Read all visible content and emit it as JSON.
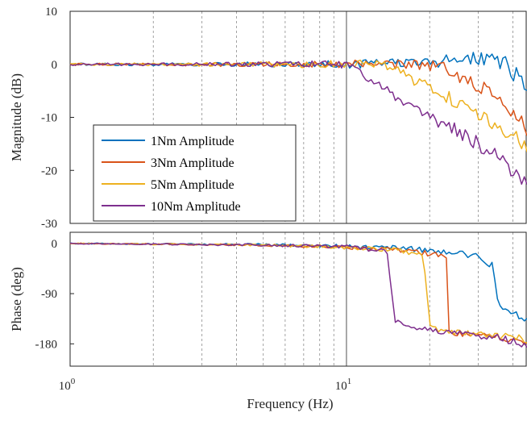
{
  "chart_data": [
    {
      "type": "line",
      "panel": "magnitude",
      "ylabel": "Magnitude (dB)",
      "xlabel": "",
      "xscale": "log",
      "xlim": [
        1,
        45
      ],
      "ylim": [
        -30,
        10
      ],
      "yticks": [
        10,
        0,
        -10,
        -20,
        -30
      ],
      "ytick_labels": [
        "10",
        "0",
        "-10",
        "-20",
        "-30"
      ],
      "grid": "x dashed",
      "legend": {
        "placement": "lower-left",
        "entries": [
          "1Nm Amplitude",
          "3Nm Amplitude",
          "5Nm Amplitude",
          "10Nm Amplitude"
        ]
      },
      "series": [
        {
          "name": "1Nm Amplitude",
          "color": "#0072BD",
          "x": [
            1,
            2,
            4,
            7,
            10,
            15,
            20,
            25,
            30,
            35,
            38,
            40,
            42,
            44,
            45
          ],
          "y": [
            0,
            0,
            0,
            0,
            0,
            0.2,
            0.5,
            0.8,
            1,
            1,
            0,
            -1.5,
            -2.5,
            -3.5,
            -3.5
          ]
        },
        {
          "name": "3Nm Amplitude",
          "color": "#D95319",
          "x": [
            1,
            3,
            6,
            10,
            14,
            17,
            19,
            22,
            25,
            30,
            35,
            40,
            45
          ],
          "y": [
            0,
            0,
            0,
            0,
            0,
            0,
            0,
            -0.5,
            -2,
            -4,
            -6.5,
            -9.5,
            -12
          ]
        },
        {
          "name": "5Nm Amplitude",
          "color": "#EDB120",
          "x": [
            1,
            3,
            6,
            10,
            13,
            15,
            17,
            20,
            25,
            30,
            35,
            40,
            45
          ],
          "y": [
            0,
            0,
            0,
            0,
            0,
            -1,
            -2.5,
            -4.5,
            -7,
            -9.5,
            -11.5,
            -13.5,
            -15
          ]
        },
        {
          "name": "10Nm Amplitude",
          "color": "#7E2F8E",
          "x": [
            1,
            3,
            6,
            9,
            10,
            12,
            15,
            17,
            20,
            25,
            30,
            35,
            40,
            45
          ],
          "y": [
            0,
            0,
            0,
            0,
            0,
            -2.5,
            -6,
            -8,
            -10,
            -12.5,
            -15,
            -17.5,
            -20,
            -22
          ]
        }
      ]
    },
    {
      "type": "line",
      "panel": "phase",
      "ylabel": "Phase (deg)",
      "xlabel": "Frequency (Hz)",
      "xscale": "log",
      "xlim": [
        1,
        45
      ],
      "ylim": [
        -220,
        20
      ],
      "yticks": [
        0,
        -90,
        -180
      ],
      "ytick_labels": [
        "0",
        "-90",
        "-180"
      ],
      "xticks": [
        1,
        10
      ],
      "xtick_labels": [
        {
          "base": "10",
          "exp": "0"
        },
        {
          "base": "10",
          "exp": "1"
        }
      ],
      "grid": "x dashed",
      "series": [
        {
          "name": "1Nm Amplitude",
          "color": "#0072BD",
          "x": [
            1,
            5,
            10,
            15,
            20,
            25,
            30,
            34,
            35,
            36,
            40,
            45
          ],
          "y": [
            0,
            -2,
            -5,
            -8,
            -12,
            -17,
            -25,
            -40,
            -90,
            -110,
            -125,
            -140
          ]
        },
        {
          "name": "3Nm Amplitude",
          "color": "#D95319",
          "x": [
            1,
            5,
            10,
            15,
            20,
            23,
            23.5,
            25,
            30,
            35,
            40,
            45
          ],
          "y": [
            0,
            -3,
            -7,
            -12,
            -18,
            -25,
            -160,
            -162,
            -165,
            -168,
            -172,
            -178
          ]
        },
        {
          "name": "5Nm Amplitude",
          "color": "#EDB120",
          "x": [
            1,
            5,
            10,
            15,
            19,
            20,
            22,
            25,
            30,
            35,
            40,
            45
          ],
          "y": [
            0,
            -3,
            -7,
            -12,
            -20,
            -150,
            -155,
            -160,
            -162,
            -165,
            -168,
            -172
          ]
        },
        {
          "name": "10Nm Amplitude",
          "color": "#7E2F8E",
          "x": [
            1,
            5,
            10,
            13,
            14,
            15,
            17,
            20,
            25,
            30,
            35,
            40,
            45
          ],
          "y": [
            0,
            -3,
            -6,
            -12,
            -15,
            -140,
            -150,
            -155,
            -160,
            -165,
            -168,
            -175,
            -182
          ]
        }
      ]
    }
  ]
}
